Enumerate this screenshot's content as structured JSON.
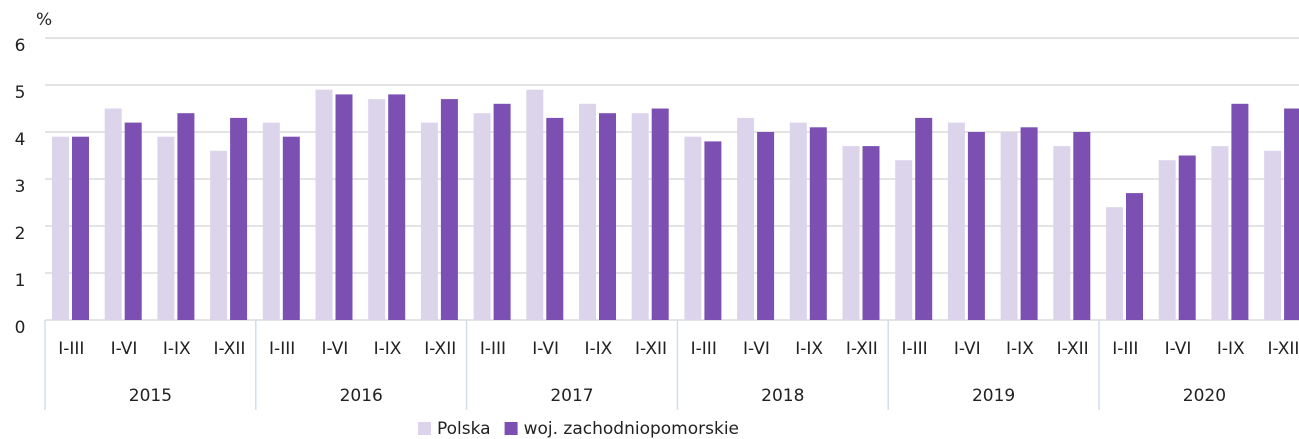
{
  "chart_data": {
    "type": "bar",
    "y_label": "%",
    "categories": [
      "I-III",
      "I-VI",
      "I-IX",
      "I-XII",
      "I-III",
      "I-VI",
      "I-IX",
      "I-XII",
      "I-III",
      "I-VI",
      "I-IX",
      "I-XII",
      "I-III",
      "I-VI",
      "I-IX",
      "I-XII",
      "I-III",
      "I-VI",
      "I-IX",
      "I-XII",
      "I-III",
      "I-VI",
      "I-IX",
      "I-XII"
    ],
    "groups": [
      "2015",
      "2016",
      "2017",
      "2018",
      "2019",
      "2020"
    ],
    "series": [
      {
        "name": "Polska",
        "color": "#dcd4ea",
        "values": [
          3.9,
          4.5,
          3.9,
          3.6,
          4.2,
          4.9,
          4.7,
          4.2,
          4.4,
          4.9,
          4.6,
          4.4,
          3.9,
          4.3,
          4.2,
          3.7,
          3.4,
          4.2,
          4.0,
          3.7,
          2.4,
          3.4,
          3.7,
          3.6
        ]
      },
      {
        "name": "woj. zachodniopomorskie",
        "color": "#7b50b2",
        "values": [
          3.9,
          4.2,
          4.4,
          4.3,
          3.9,
          4.8,
          4.8,
          4.7,
          4.6,
          4.3,
          4.4,
          4.5,
          3.8,
          4.0,
          4.1,
          3.7,
          4.3,
          4.0,
          4.1,
          4.0,
          2.7,
          3.5,
          4.6,
          4.5
        ]
      }
    ],
    "ylim": [
      0,
      6
    ],
    "yticks": [
      0,
      1,
      2,
      3,
      4,
      5,
      6
    ],
    "grid": true,
    "legend": "bottom"
  }
}
